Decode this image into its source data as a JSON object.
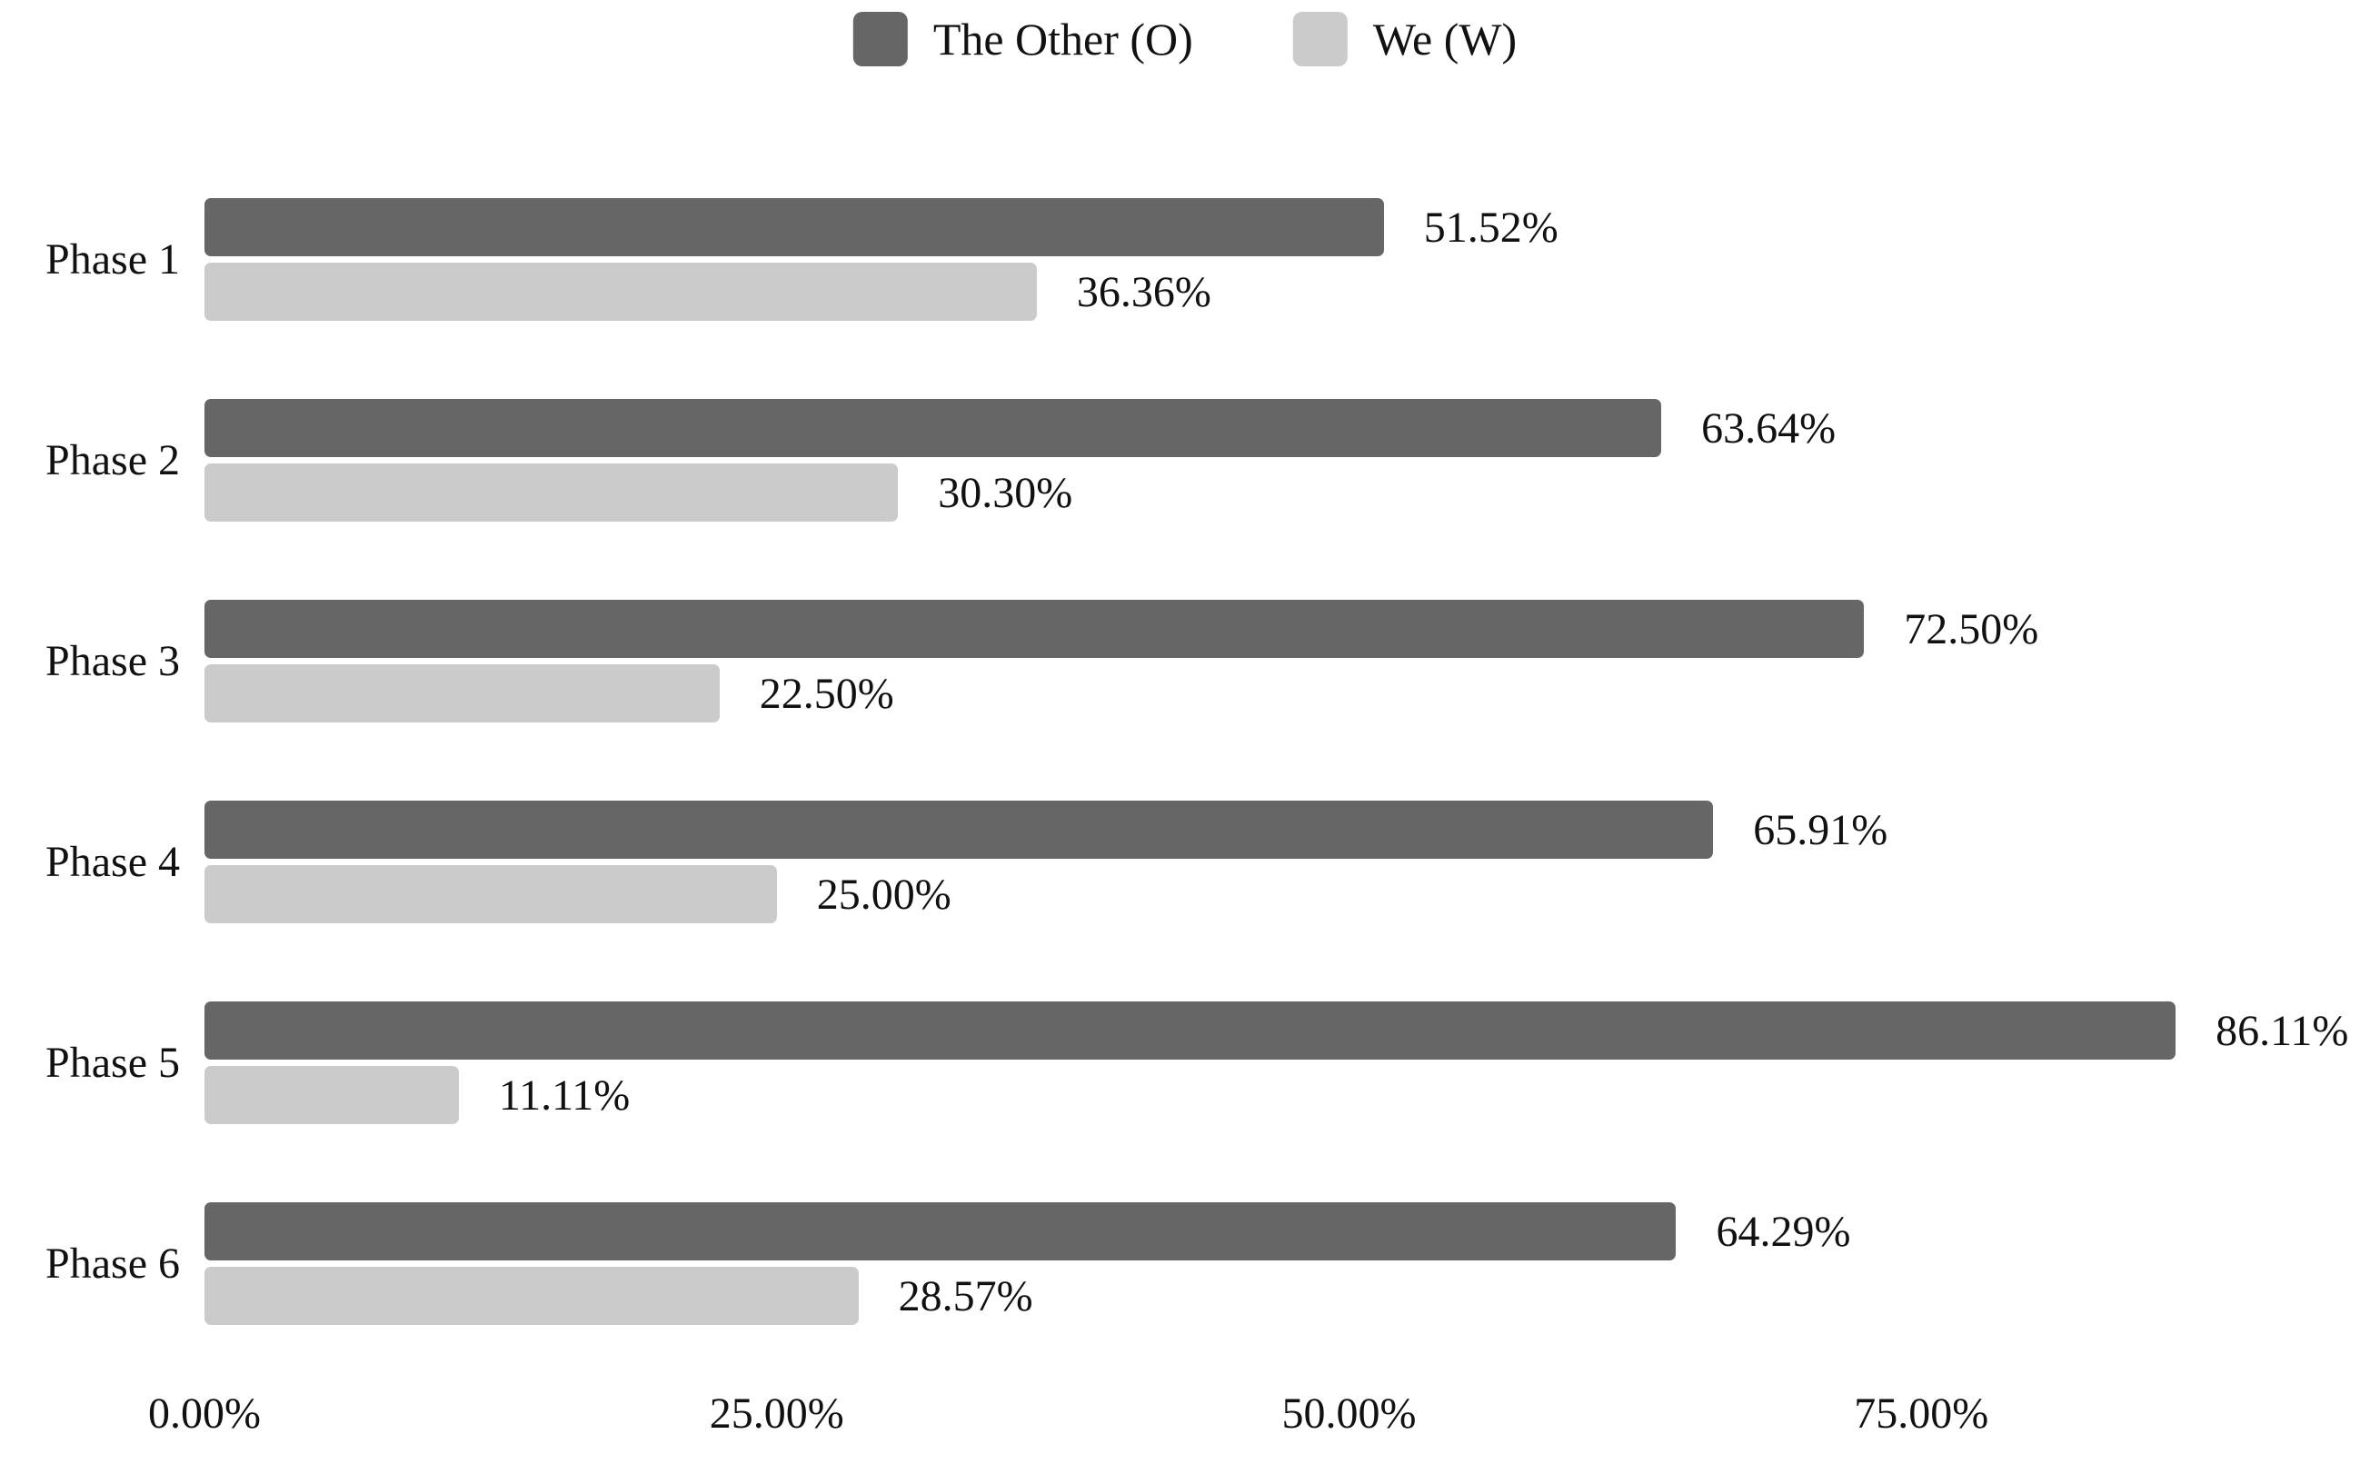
{
  "chart_data": {
    "type": "bar",
    "orientation": "horizontal",
    "title": "",
    "xlabel": "",
    "ylabel": "",
    "categories": [
      "Phase 1",
      "Phase 2",
      "Phase 3",
      "Phase 4",
      "Phase 5",
      "Phase 6"
    ],
    "series": [
      {
        "name": "The Other (O)",
        "color": "#666666",
        "values": [
          51.52,
          63.64,
          72.5,
          65.91,
          86.11,
          64.29
        ],
        "data_labels": [
          "51.52%",
          "63.64%",
          "72.50%",
          "65.91%",
          "86.11%",
          "64.29%"
        ]
      },
      {
        "name": "We (W)",
        "color": "#cbcbcb",
        "values": [
          36.36,
          30.3,
          22.5,
          25.0,
          11.11,
          28.57
        ],
        "data_labels": [
          "36.36%",
          "30.30%",
          "22.50%",
          "25.00%",
          "11.11%",
          "28.57%"
        ]
      }
    ],
    "x_ticks": [
      {
        "value": 0,
        "label": "0.00%"
      },
      {
        "value": 25,
        "label": "25.00%"
      },
      {
        "value": 50,
        "label": "50.00%"
      },
      {
        "value": 75,
        "label": "75.00%"
      }
    ],
    "xlim": [
      0,
      94.6
    ],
    "grid": false,
    "legend_position": "top",
    "background": "#ffffff",
    "text_color": "#111111"
  }
}
